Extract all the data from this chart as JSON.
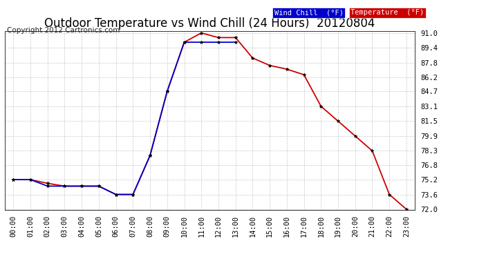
{
  "title": "Outdoor Temperature vs Wind Chill (24 Hours)  20120804",
  "copyright": "Copyright 2012 Cartronics.com",
  "background_color": "#ffffff",
  "plot_bg_color": "#ffffff",
  "grid_color": "#bbbbbb",
  "hours": [
    "00:00",
    "01:00",
    "02:00",
    "03:00",
    "04:00",
    "05:00",
    "06:00",
    "07:00",
    "08:00",
    "09:00",
    "10:00",
    "11:00",
    "12:00",
    "13:00",
    "14:00",
    "15:00",
    "16:00",
    "17:00",
    "18:00",
    "19:00",
    "20:00",
    "21:00",
    "22:00",
    "23:00"
  ],
  "temperature": [
    75.2,
    75.2,
    74.8,
    74.5,
    74.5,
    74.5,
    73.6,
    73.6,
    77.8,
    84.7,
    90.0,
    91.0,
    90.5,
    90.5,
    88.3,
    87.5,
    87.1,
    86.5,
    83.1,
    81.5,
    79.9,
    78.3,
    73.6,
    72.0
  ],
  "wind_chill": [
    75.2,
    75.2,
    74.5,
    74.5,
    74.5,
    74.5,
    73.6,
    73.6,
    77.8,
    84.7,
    90.0,
    90.0,
    90.0,
    90.0,
    null,
    null,
    null,
    null,
    null,
    null,
    null,
    null,
    null,
    null
  ],
  "temp_color": "#cc0000",
  "wind_color": "#0000cc",
  "marker_color": "#000000",
  "ylim_min": 72.0,
  "ylim_max": 91.0,
  "yticks": [
    72.0,
    73.6,
    75.2,
    76.8,
    78.3,
    79.9,
    81.5,
    83.1,
    84.7,
    86.2,
    87.8,
    89.4,
    91.0
  ],
  "legend_wind_bg": "#0000cc",
  "legend_wind_text": "Wind Chill  (°F)",
  "legend_temp_bg": "#cc0000",
  "legend_temp_text": "Temperature  (°F)",
  "title_fontsize": 12,
  "tick_fontsize": 7.5,
  "copyright_fontsize": 7.5
}
